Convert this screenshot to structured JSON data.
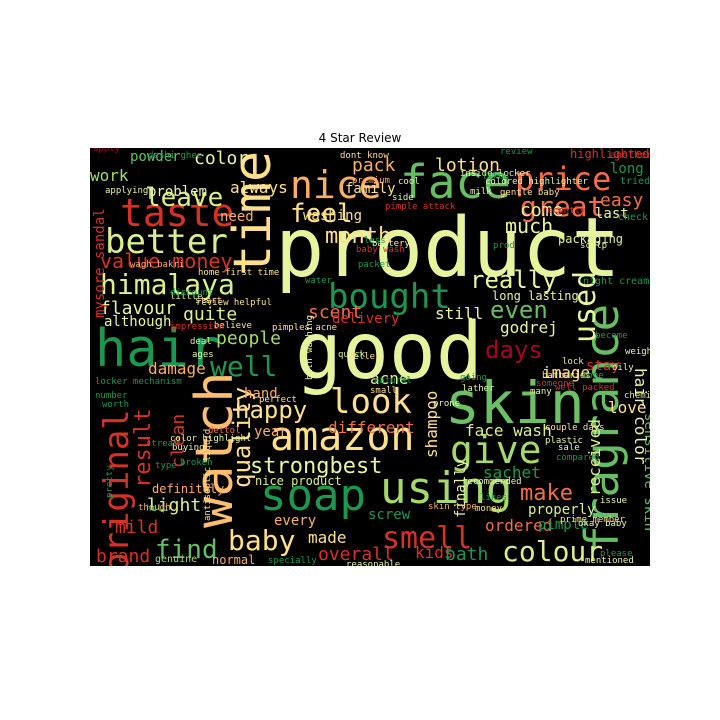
{
  "title": "4 Star Review",
  "colors": {
    "background": "#000000",
    "palette": [
      "#a50026",
      "#d73027",
      "#f46d43",
      "#fdae61",
      "#fee08b",
      "#d9ef8b",
      "#a6d96a",
      "#66bd63",
      "#1a9850",
      "#006837"
    ]
  },
  "words": [
    {
      "text": "product",
      "color": "#e6f59d"
    },
    {
      "text": "good",
      "color": "#e6f59d"
    },
    {
      "text": "skin",
      "color": "#6bbf64"
    },
    {
      "text": "hair",
      "color": "#1a9850"
    },
    {
      "text": "time",
      "color": "#fee08b"
    },
    {
      "text": "watch",
      "color": "#fdbf6f"
    },
    {
      "text": "face",
      "color": "#66bd63"
    },
    {
      "text": "soap",
      "color": "#1a9850"
    },
    {
      "text": "using",
      "color": "#a6d96a"
    },
    {
      "text": "amazon",
      "color": "#fee08b"
    },
    {
      "text": "fragrance",
      "color": "#66bd63"
    },
    {
      "text": "nice",
      "color": "#fdae61"
    },
    {
      "text": "price",
      "color": "#f46d43"
    },
    {
      "text": "taste",
      "color": "#d73027"
    },
    {
      "text": "better",
      "color": "#d9ef8b"
    },
    {
      "text": "look",
      "color": "#fee08b"
    },
    {
      "text": "bought",
      "color": "#1a9850"
    },
    {
      "text": "smell",
      "color": "#d73027"
    },
    {
      "text": "give",
      "color": "#a6d96a"
    },
    {
      "text": "feel",
      "color": "#fee08b"
    },
    {
      "text": "great",
      "color": "#f46d43"
    },
    {
      "text": "leave",
      "color": "#d9ef8b"
    },
    {
      "text": "himalaya",
      "color": "#d9ef8b"
    },
    {
      "text": "well",
      "color": "#1a9850"
    },
    {
      "text": "original",
      "color": "#d73027"
    },
    {
      "text": "colour",
      "color": "#d9ef8b"
    },
    {
      "text": "baby",
      "color": "#fee08b"
    },
    {
      "text": "happy",
      "color": "#fee08b"
    },
    {
      "text": "strongbest",
      "color": "#e6f59d"
    },
    {
      "text": "quality",
      "color": "#fee08b"
    },
    {
      "text": "find",
      "color": "#66bd63"
    },
    {
      "text": "month",
      "color": "#fee08b"
    },
    {
      "text": "even",
      "color": "#66bd63"
    },
    {
      "text": "used",
      "color": "#e6f59d"
    },
    {
      "text": "really",
      "color": "#e6f59d"
    },
    {
      "text": "days",
      "color": "#a50026"
    },
    {
      "text": "make",
      "color": "#f46d43"
    },
    {
      "text": "value money",
      "color": "#d73027"
    },
    {
      "text": "result",
      "color": "#d73027"
    },
    {
      "text": "pack",
      "color": "#fdae61"
    },
    {
      "text": "easy",
      "color": "#f46d43"
    },
    {
      "text": "much",
      "color": "#e6f59d"
    },
    {
      "text": "come",
      "color": "#e6f59d"
    },
    {
      "text": "lotion",
      "color": "#fee08b"
    },
    {
      "text": "always",
      "color": "#fee08b"
    },
    {
      "text": "color",
      "color": "#e6f59d"
    },
    {
      "text": "work",
      "color": "#a6d96a"
    },
    {
      "text": "flavour",
      "color": "#e6f59d"
    },
    {
      "text": "quite",
      "color": "#d9ef8b"
    },
    {
      "text": "scent",
      "color": "#f46d43"
    },
    {
      "text": "people",
      "color": "#a6d96a"
    },
    {
      "text": "damage",
      "color": "#fdae61"
    },
    {
      "text": "image",
      "color": "#fee08b"
    },
    {
      "text": "acne",
      "color": "#d9ef8b"
    },
    {
      "text": "godrej",
      "color": "#e6f59d"
    },
    {
      "text": "still",
      "color": "#e6f59d"
    },
    {
      "text": "hair color",
      "color": "#e6f59d"
    },
    {
      "text": "face wash",
      "color": "#d9ef8b"
    },
    {
      "text": "love",
      "color": "#fee08b"
    },
    {
      "text": "sachet",
      "color": "#1a9850"
    },
    {
      "text": "shampoo",
      "color": "#fee08b"
    },
    {
      "text": "received",
      "color": "#d9ef8b"
    },
    {
      "text": "ordered",
      "color": "#f46d43"
    },
    {
      "text": "overall",
      "color": "#d73027"
    },
    {
      "text": "kids",
      "color": "#d73027"
    },
    {
      "text": "bath",
      "color": "#1a9850"
    },
    {
      "text": "made",
      "color": "#fee08b"
    },
    {
      "text": "brand",
      "color": "#d73027"
    },
    {
      "text": "mild",
      "color": "#d73027"
    },
    {
      "text": "light",
      "color": "#d9ef8b"
    },
    {
      "text": "clean",
      "color": "#d73027"
    },
    {
      "text": "different",
      "color": "#f46d43"
    },
    {
      "text": "properly",
      "color": "#d9ef8b"
    },
    {
      "text": "pimple",
      "color": "#1a9850"
    },
    {
      "text": "stay",
      "color": "#d73027"
    },
    {
      "text": "long",
      "color": "#1a9850"
    },
    {
      "text": "last",
      "color": "#e6f59d"
    },
    {
      "text": "need",
      "color": "#fdae61"
    },
    {
      "text": "washing",
      "color": "#fee08b"
    },
    {
      "text": "family",
      "color": "#fee08b"
    },
    {
      "text": "problem",
      "color": "#e6f59d"
    },
    {
      "text": "powder",
      "color": "#66bd63"
    },
    {
      "text": "mysore sandal",
      "color": "#d73027"
    },
    {
      "text": "delivery",
      "color": "#d73027"
    },
    {
      "text": "although",
      "color": "#e6f59d"
    },
    {
      "text": "year",
      "color": "#fdae61"
    },
    {
      "text": "hand",
      "color": "#fdae61"
    },
    {
      "text": "every",
      "color": "#fdae61"
    },
    {
      "text": "screw",
      "color": "#1a9850"
    },
    {
      "text": "finally",
      "color": "#e6f59d"
    },
    {
      "text": "sensitive skin",
      "color": "#66bd63"
    },
    {
      "text": "nice product",
      "color": "#d9ef8b"
    },
    {
      "text": "definitely",
      "color": "#fdae61"
    },
    {
      "text": "normal",
      "color": "#fdae61"
    },
    {
      "text": "genuine",
      "color": "#a6d96a"
    },
    {
      "text": "highlighted hair",
      "color": "#d73027"
    },
    {
      "text": "packaging",
      "color": "#d9ef8b"
    },
    {
      "text": "tried",
      "color": "#1a9850"
    },
    {
      "text": "check",
      "color": "#1a9850"
    },
    {
      "text": "another",
      "color": "#d73027"
    },
    {
      "text": "long lasting",
      "color": "#e6f59d"
    },
    {
      "text": "night cream",
      "color": "#1a9850"
    },
    {
      "text": "become",
      "color": "#1a9850"
    },
    {
      "text": "weight",
      "color": "#e6f59d"
    },
    {
      "text": "oily",
      "color": "#e6f59d"
    },
    {
      "text": "chemical",
      "color": "#d9ef8b"
    },
    {
      "text": "lock",
      "color": "#d9ef8b"
    },
    {
      "text": "dont know",
      "color": "#fee08b"
    },
    {
      "text": "premium",
      "color": "#fdae61"
    },
    {
      "text": "home first time",
      "color": "#fee08b"
    },
    {
      "text": "review helpful",
      "color": "#fee08b"
    },
    {
      "text": "pimples acne",
      "color": "#fee08b"
    },
    {
      "text": "perfect",
      "color": "#fee08b"
    },
    {
      "text": "believe",
      "color": "#fee08b"
    },
    {
      "text": "impression",
      "color": "#d73027"
    },
    {
      "text": "seller",
      "color": "#fee08b"
    },
    {
      "text": "going",
      "color": "#1a9850"
    },
    {
      "text": "lather",
      "color": "#e6f59d"
    },
    {
      "text": "batteries",
      "color": "#fee08b"
    },
    {
      "text": "well packed",
      "color": "#d73027"
    },
    {
      "text": "okay baby",
      "color": "#e6f59d"
    },
    {
      "text": "prime member",
      "color": "#fee08b"
    },
    {
      "text": "please",
      "color": "#1a9850"
    },
    {
      "text": "mentioned",
      "color": "#e6f59d"
    },
    {
      "text": "reasonable",
      "color": "#e6f59d"
    },
    {
      "text": "specially",
      "color": "#1a9850"
    },
    {
      "text": "colored highlighter",
      "color": "#e6f59d"
    },
    {
      "text": "gentle baby",
      "color": "#fee08b"
    },
    {
      "text": "wagh bakri",
      "color": "#fdae61"
    },
    {
      "text": "applying",
      "color": "#e6f59d"
    },
    {
      "text": "deshi ghee",
      "color": "#1a9850"
    },
    {
      "text": "apply",
      "color": "#a50026"
    },
    {
      "text": "color highlight",
      "color": "#e6f59d"
    },
    {
      "text": "antiseptic liquid",
      "color": "#fee08b"
    },
    {
      "text": "dettol",
      "color": "#f46d43"
    },
    {
      "text": "couple days",
      "color": "#fee08b"
    },
    {
      "text": "skin type",
      "color": "#fdae61"
    },
    {
      "text": "recommended",
      "color": "#e6f59d"
    },
    {
      "text": "pimple attack",
      "color": "#d73027"
    },
    {
      "text": "inside locker",
      "color": "#e6f59d"
    },
    {
      "text": "battery",
      "color": "#e6f59d"
    },
    {
      "text": "water",
      "color": "#1a9850"
    },
    {
      "text": "little",
      "color": "#d9ef8b"
    },
    {
      "text": "start",
      "color": "#fee08b"
    },
    {
      "text": "cool",
      "color": "#e6f59d"
    },
    {
      "text": "money",
      "color": "#fee08b"
    },
    {
      "text": "issue",
      "color": "#e6f59d"
    },
    {
      "text": "plastic",
      "color": "#e6f59d"
    },
    {
      "text": "sale",
      "color": "#e6f59d"
    },
    {
      "text": "compared",
      "color": "#1a9850"
    },
    {
      "text": "prone",
      "color": "#e6f59d"
    },
    {
      "text": "number",
      "color": "#1a9850"
    },
    {
      "text": "worth",
      "color": "#1a9850"
    },
    {
      "text": "type",
      "color": "#1a9850"
    },
    {
      "text": "buying",
      "color": "#e6f59d"
    },
    {
      "text": "help",
      "color": "#1a9850"
    },
    {
      "text": "though",
      "color": "#fdae61"
    },
    {
      "text": "locker mechanism",
      "color": "#1a9850"
    },
    {
      "text": "pretty",
      "color": "#1a9850"
    },
    {
      "text": "stream",
      "color": "#1a9850"
    },
    {
      "text": "broken",
      "color": "#1a9850"
    },
    {
      "text": "side",
      "color": "#e6f59d"
    },
    {
      "text": "milk",
      "color": "#e6f59d"
    },
    {
      "text": "liked",
      "color": "#1a9850"
    },
    {
      "text": "review",
      "color": "#1a9850"
    },
    {
      "text": "less",
      "color": "#1a9850"
    },
    {
      "text": "baby wash",
      "color": "#d73027"
    },
    {
      "text": "packet",
      "color": "#1a9850"
    },
    {
      "text": "likes",
      "color": "#1a9850"
    },
    {
      "text": "recently",
      "color": "#d73027"
    },
    {
      "text": "scalp",
      "color": "#e6f59d"
    },
    {
      "text": "done",
      "color": "#1a9850"
    },
    {
      "text": "natural",
      "color": "#1a9850"
    },
    {
      "text": "someone",
      "color": "#d73027"
    },
    {
      "text": "many",
      "color": "#e6f59d"
    },
    {
      "text": "quick",
      "color": "#d9ef8b"
    },
    {
      "text": "deal",
      "color": "#d9ef8b"
    },
    {
      "text": "ages",
      "color": "#e6f59d"
    },
    {
      "text": "bath washing",
      "color": "#e6f59d"
    },
    {
      "text": "discount",
      "color": "#1a9850"
    },
    {
      "text": "small",
      "color": "#fee08b"
    },
    {
      "text": "prod",
      "color": "#1a9850"
    }
  ]
}
